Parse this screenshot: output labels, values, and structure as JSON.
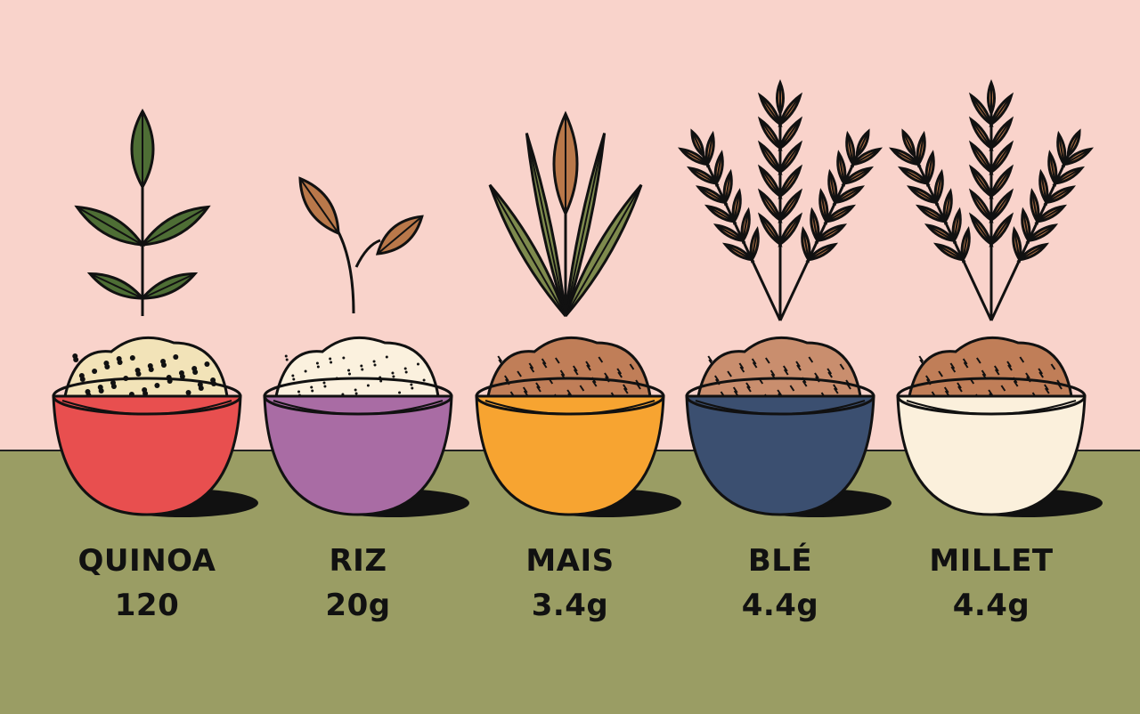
{
  "grains": [
    {
      "name": "QUINOA",
      "value": "120",
      "bowl_color": "#E84F4F",
      "content_color": "#F2E3B8",
      "plant": "leafy-sprout"
    },
    {
      "name": "RIZ",
      "value": "20g",
      "bowl_color": "#A96CA4",
      "content_color": "#FBF1DE",
      "plant": "seed-sprout"
    },
    {
      "name": "MAIS",
      "value": "3.4g",
      "bowl_color": "#F7A431",
      "content_color": "#C07E58",
      "plant": "corn-stalk"
    },
    {
      "name": "BLÉ",
      "value": "4.4g",
      "bowl_color": "#3B4F70",
      "content_color": "#C98E6E",
      "plant": "wheat-ears"
    },
    {
      "name": "MILLET",
      "value": "4.4g",
      "bowl_color": "#FBF0DC",
      "content_color": "#C07E58",
      "plant": "wheat-ears"
    }
  ],
  "colors": {
    "background": "#F9D3CB",
    "ground": "#9A9D64",
    "leaf": "#4E6E35",
    "seed": "#B9784A",
    "outline": "#111111"
  }
}
